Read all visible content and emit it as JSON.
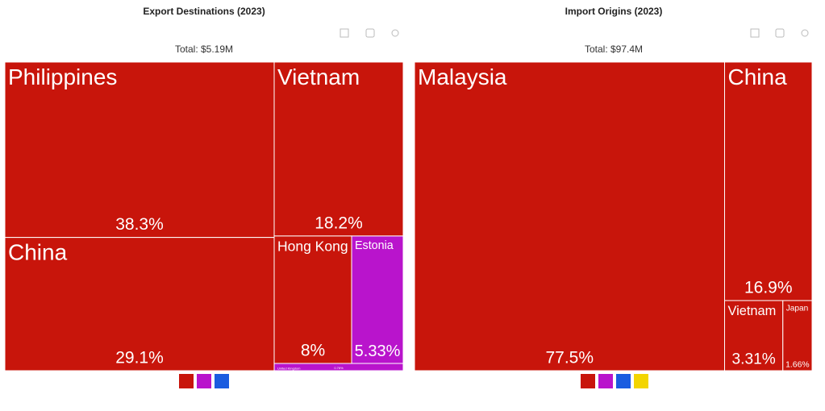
{
  "chart_data": [
    {
      "type": "treemap",
      "title": "Export Destinations (2023)",
      "subtitle": "Total: $5.19M",
      "categories": [
        "Philippines",
        "China",
        "Vietnam",
        "Hong Kong",
        "Estonia",
        "United Kingdom"
      ],
      "values": [
        38.3,
        29.1,
        18.2,
        8,
        5.33,
        0.76
      ],
      "value_labels": [
        "38.3%",
        "29.1%",
        "18.2%",
        "8%",
        "5.33%",
        "0.76%"
      ],
      "colors": [
        "#c8150b",
        "#c8150b",
        "#c8150b",
        "#c8150b",
        "#b914cc",
        "#b914cc"
      ]
    },
    {
      "type": "treemap",
      "title": "Import Origins (2023)",
      "subtitle": "Total: $97.4M",
      "categories": [
        "Malaysia",
        "China",
        "Vietnam",
        "Japan"
      ],
      "values": [
        77.5,
        16.9,
        3.31,
        1.66
      ],
      "value_labels": [
        "77.5%",
        "16.9%",
        "3.31%",
        "1.66%"
      ],
      "colors": [
        "#c8150b",
        "#c8150b",
        "#c8150b",
        "#c8150b"
      ]
    }
  ]
}
